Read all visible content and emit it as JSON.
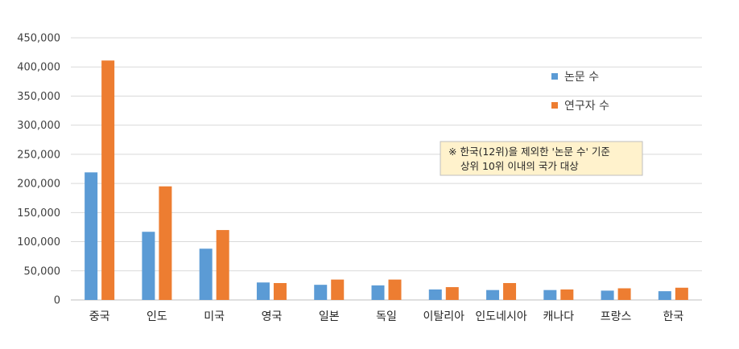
{
  "chart_data": {
    "type": "bar",
    "title": "",
    "xlabel": "",
    "ylabel": "",
    "categories": [
      "중국",
      "인도",
      "미국",
      "영국",
      "일본",
      "독일",
      "이탈리아",
      "인도네시아",
      "캐나다",
      "프랑스",
      "한국"
    ],
    "series": [
      {
        "name": "논문 수",
        "color": "#5B9BD5",
        "values": [
          219000,
          117000,
          88000,
          30000,
          26000,
          25000,
          18000,
          17000,
          17000,
          16000,
          15000
        ]
      },
      {
        "name": "연구자 수",
        "color": "#ED7D31",
        "values": [
          411000,
          195000,
          120000,
          29000,
          35000,
          35000,
          22000,
          29000,
          18000,
          20000,
          21000
        ]
      }
    ],
    "ylim": [
      0,
      450000
    ],
    "yticks": [
      0,
      50000,
      100000,
      150000,
      200000,
      250000,
      300000,
      350000,
      400000,
      450000
    ],
    "ytick_labels": [
      "0",
      "50,000",
      "100,000",
      "150,000",
      "200,000",
      "250,000",
      "300,000",
      "350,000",
      "400,000",
      "450,000"
    ],
    "grid": true,
    "legend_position": "top-right",
    "annotation": {
      "lines": [
        "※ 한국(12위)을 제외한 '논문 수' 기준",
        "상위 10위 이내의 국가 대상"
      ],
      "background": "#FFF2CC"
    },
    "gridline_color": "#D9D9D9",
    "axis_color": "#BFBFBF"
  }
}
